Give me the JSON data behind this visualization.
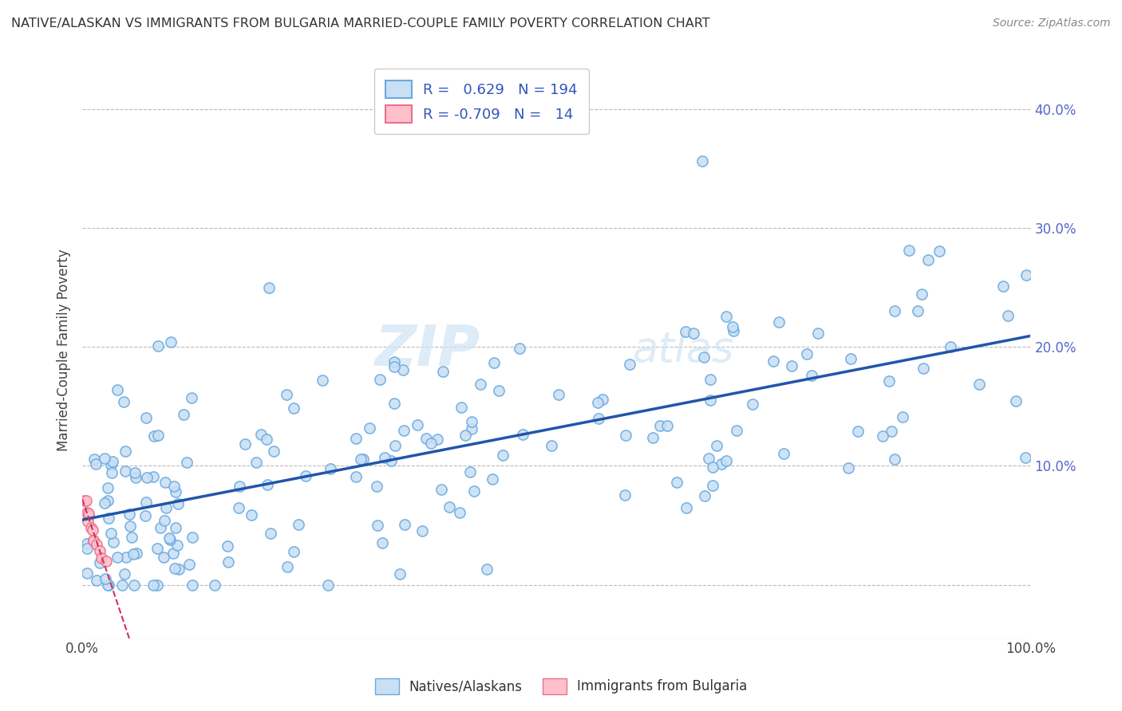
{
  "title": "NATIVE/ALASKAN VS IMMIGRANTS FROM BULGARIA MARRIED-COUPLE FAMILY POVERTY CORRELATION CHART",
  "source": "Source: ZipAtlas.com",
  "ylabel": "Married-Couple Family Poverty",
  "xlabel": "",
  "xlim": [
    0.0,
    1.0
  ],
  "ylim": [
    -0.045,
    0.44
  ],
  "xticks": [
    0.0,
    0.1,
    0.2,
    0.3,
    0.4,
    0.5,
    0.6,
    0.7,
    0.8,
    0.9,
    1.0
  ],
  "xtick_labels": [
    "0.0%",
    "",
    "",
    "",
    "",
    "",
    "",
    "",
    "",
    "",
    "100.0%"
  ],
  "yticks": [
    0.0,
    0.1,
    0.2,
    0.3,
    0.4
  ],
  "ytick_labels": [
    "",
    "10.0%",
    "20.0%",
    "30.0%",
    "40.0%"
  ],
  "native_color": "#c8dff4",
  "native_edge": "#6aaae0",
  "bulgaria_color": "#ffc0cb",
  "bulgaria_edge": "#e87090",
  "native_line_color": "#2255aa",
  "bulgaria_line_color": "#cc3355",
  "R_native": 0.629,
  "N_native": 194,
  "R_bulgaria": -0.709,
  "N_bulgaria": 14,
  "legend_labels": [
    "Natives/Alaskans",
    "Immigrants from Bulgaria"
  ],
  "background_color": "#ffffff",
  "grid_color": "#bbbbbb",
  "ytick_color": "#5566cc",
  "xtick_color": "#444444"
}
